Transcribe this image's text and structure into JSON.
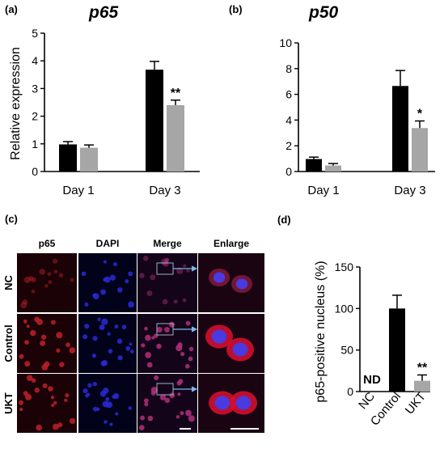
{
  "panels": {
    "a": "(a)",
    "b": "(b)",
    "c": "(c)",
    "d": "(d)"
  },
  "colors": {
    "black_bar": "#000000",
    "gray_bar": "#a6a6a6",
    "red_stain": "#c0202a",
    "blue_stain": "#2a2ad8",
    "magenta_stain": "#b0307a",
    "arrow": "#7ab8e8"
  },
  "microscopy": {
    "columns": [
      "p65",
      "DAPI",
      "Merge",
      "Enlarge"
    ],
    "rows": [
      "NC",
      "Control",
      "UKT"
    ]
  },
  "chart_data": [
    {
      "type": "bar",
      "title": "p65",
      "ylabel": "Relative expression",
      "categories": [
        "Day 1",
        "Day 3"
      ],
      "ylim": [
        0,
        5
      ],
      "yticks": [
        0,
        1,
        2,
        3,
        4,
        5
      ],
      "series": [
        {
          "color": "#000000",
          "values": [
            0.98,
            3.68
          ],
          "errors": [
            0.1,
            0.3
          ]
        },
        {
          "color": "#a6a6a6",
          "values": [
            0.86,
            2.4
          ],
          "errors": [
            0.1,
            0.18
          ]
        }
      ],
      "annotations": [
        {
          "category": 1,
          "series": 1,
          "text": "**"
        }
      ]
    },
    {
      "type": "bar",
      "title": "p50",
      "ylabel": "",
      "categories": [
        "Day 1",
        "Day 3"
      ],
      "ylim": [
        0,
        10
      ],
      "yticks": [
        0,
        2,
        4,
        6,
        8,
        10
      ],
      "series": [
        {
          "color": "#000000",
          "values": [
            0.97,
            6.65
          ],
          "errors": [
            0.15,
            1.2
          ]
        },
        {
          "color": "#a6a6a6",
          "values": [
            0.47,
            3.38
          ],
          "errors": [
            0.15,
            0.55
          ]
        }
      ],
      "annotations": [
        {
          "category": 1,
          "series": 1,
          "text": "*"
        }
      ]
    },
    {
      "type": "bar",
      "title": "",
      "ylabel": "p65-positive nucleus (%)",
      "categories": [
        "NC",
        "Control",
        "UKT"
      ],
      "ylim": [
        0,
        150
      ],
      "yticks": [
        0,
        50,
        100,
        150
      ],
      "values": [
        0,
        100,
        13
      ],
      "errors": [
        0,
        16,
        7
      ],
      "colors": [
        "#000000",
        "#000000",
        "#a6a6a6"
      ],
      "annotations": [
        {
          "category": 0,
          "text": "ND"
        },
        {
          "category": 2,
          "text": "**"
        }
      ]
    }
  ]
}
